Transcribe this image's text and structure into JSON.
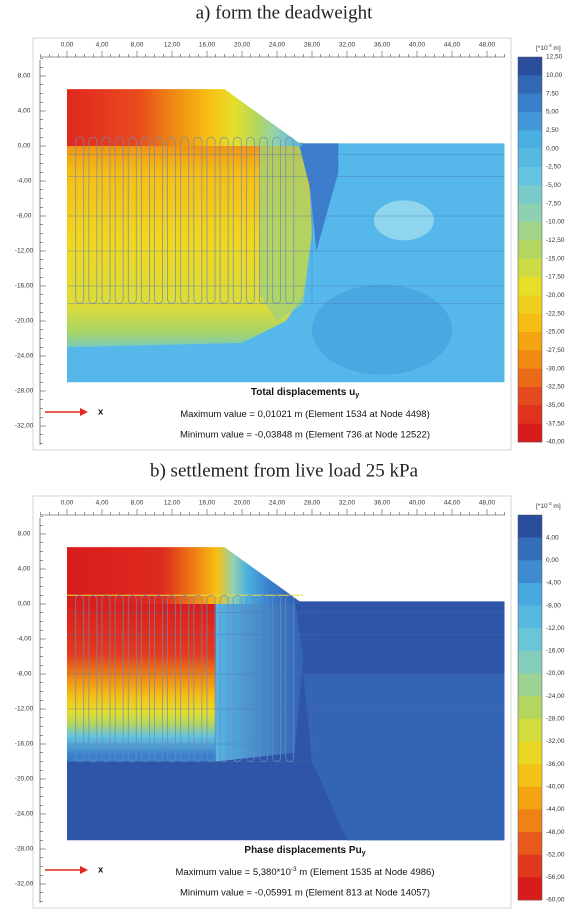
{
  "panels": [
    {
      "title": "a) form the deadweight",
      "x_ticks": [
        "0,00",
        "4,00",
        "8,00",
        "12,00",
        "16,00",
        "20,00",
        "24,00",
        "28,00",
        "32,00",
        "36,00",
        "40,00",
        "44,00",
        "48,00"
      ],
      "y_ticks": [
        "8,00",
        "4,00",
        "0,00",
        "-4,00",
        "-8,00",
        "-12,00",
        "-16,00",
        "-20,00",
        "-24,00",
        "-28,00",
        "-32,00"
      ],
      "unit": [
        "[*10",
        "-3",
        " m]"
      ],
      "legend": [
        "12,50",
        "10,00",
        "7,50",
        "5,00",
        "2,50",
        "0,00",
        "-2,50",
        "-5,00",
        "-7,50",
        "-10,00",
        "-12,50",
        "-15,00",
        "-17,50",
        "-20,00",
        "-22,50",
        "-25,00",
        "-27,50",
        "-30,00",
        "-32,50",
        "-35,00",
        "-37,50",
        "-40,00"
      ],
      "axis_label": "x",
      "result_title": "Total displacements u",
      "result_subscript": "y",
      "max_text": [
        "Maximum value = 0,01021 m (Element 1534 at Node 4498)"
      ],
      "min_text": "Minimum value = -0,03848 m (Element 736 at Node 12522)"
    },
    {
      "title": "b) settlement from live load 25 kPa",
      "x_ticks": [
        "0,00",
        "4,00",
        "8,00",
        "12,00",
        "16,00",
        "20,00",
        "24,00",
        "28,00",
        "32,00",
        "36,00",
        "40,00",
        "44,00",
        "48,00"
      ],
      "y_ticks": [
        "8,00",
        "4,00",
        "0,00",
        "-4,00",
        "-8,00",
        "-12,00",
        "-16,00",
        "-20,00",
        "-24,00",
        "-28,00",
        "-32,00"
      ],
      "unit": [
        "[*10",
        "-3",
        " m]"
      ],
      "legend": [
        "4,00",
        "0,00",
        "-4,00",
        "-8,00",
        "-12,00",
        "-16,00",
        "-20,00",
        "-24,00",
        "-28,00",
        "-32,00",
        "-36,00",
        "-40,00",
        "-44,00",
        "-48,00",
        "-52,00",
        "-56,00",
        "-60,00"
      ],
      "axis_label": "x",
      "result_title": "Phase displacements Pu",
      "result_subscript": "y",
      "max_text": [
        "Maximum value = 5,380*10",
        "-3",
        " m (Element 1535 at Node 4986)"
      ],
      "min_text": "Minimum value = -0,05991 m (Element 813 at Node 14057)"
    }
  ]
}
